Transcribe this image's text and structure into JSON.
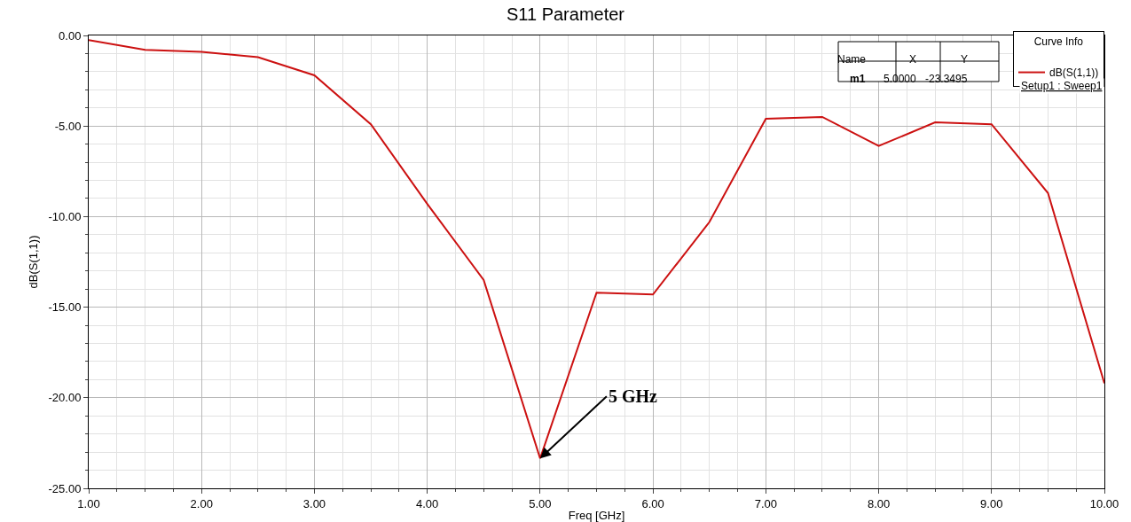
{
  "chart_data": {
    "type": "line",
    "title": "S11 Parameter",
    "xlabel": "Freq [GHz]",
    "ylabel": "dB(S(1,1))",
    "legend_title": "Curve Info",
    "x": [
      1.0,
      1.5,
      2.0,
      2.5,
      3.0,
      3.5,
      4.0,
      4.5,
      5.0,
      5.5,
      6.0,
      6.5,
      7.0,
      7.5,
      8.0,
      8.5,
      9.0,
      9.5,
      10.0
    ],
    "series": [
      {
        "name": "dB(S(1,1))",
        "color": "#cc1111",
        "values": [
          -0.25,
          -0.8,
          -0.9,
          -1.2,
          -2.2,
          -4.9,
          -9.3,
          -13.5,
          -23.3495,
          -14.2,
          -14.3,
          -10.3,
          -4.6,
          -4.5,
          -6.1,
          -4.8,
          -4.9,
          -8.7,
          -19.2
        ]
      }
    ],
    "xlim": [
      1,
      10
    ],
    "xticks": [
      {
        "value": 1,
        "label": "1.00"
      },
      {
        "value": 2,
        "label": "2.00"
      },
      {
        "value": 3,
        "label": "3.00"
      },
      {
        "value": 4,
        "label": "4.00"
      },
      {
        "value": 5,
        "label": "5.00"
      },
      {
        "value": 6,
        "label": "6.00"
      },
      {
        "value": 7,
        "label": "7.00"
      },
      {
        "value": 8,
        "label": "8.00"
      },
      {
        "value": 9,
        "label": "9.00"
      },
      {
        "value": 10,
        "label": "10.00"
      }
    ],
    "ylim": [
      -25,
      0
    ],
    "yticks": [
      {
        "value": -25,
        "label": "-25.00"
      },
      {
        "value": -20,
        "label": "-20.00"
      },
      {
        "value": -15,
        "label": "-15.00"
      },
      {
        "value": -10,
        "label": "-10.00"
      },
      {
        "value": -5,
        "label": "-5.00"
      },
      {
        "value": 0,
        "label": "0.00"
      }
    ],
    "grid": true,
    "legend": "top right",
    "marker": "none",
    "line_style": "solid",
    "annotations": [
      {
        "text": "5 GHz",
        "x": 5,
        "y": -23.3495
      },
      "Name",
      "X",
      "Y",
      "m1",
      "5.0000",
      "-23.3495",
      "Setup1 : Sweep1"
    ]
  }
}
